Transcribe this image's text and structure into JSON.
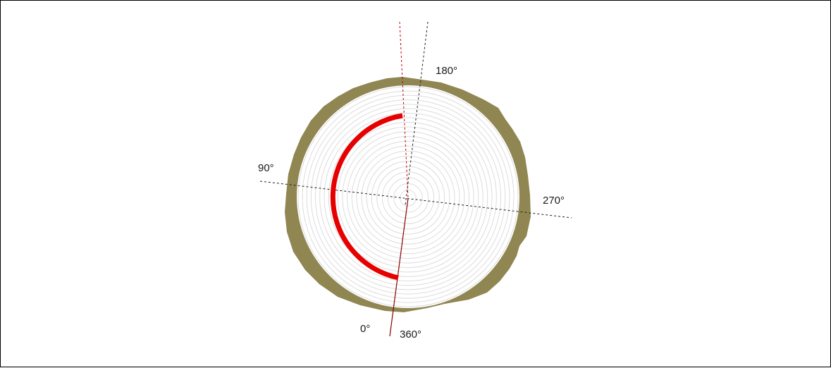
{
  "diagram": {
    "labels": {
      "deg_0": "0°",
      "deg_90": "90°",
      "deg_180": "180°",
      "deg_270": "270°",
      "deg_360": "360°"
    },
    "colors": {
      "bark": "#8f8652",
      "wood": "#ffffff",
      "ring": "#dcdcdc",
      "arc": "#e60000",
      "red_axis": "#c00000",
      "black_axis": "#222222"
    },
    "ring_count": 22,
    "highlighted_arc": {
      "start_angle_deg": 0,
      "end_angle_deg": 180
    }
  }
}
